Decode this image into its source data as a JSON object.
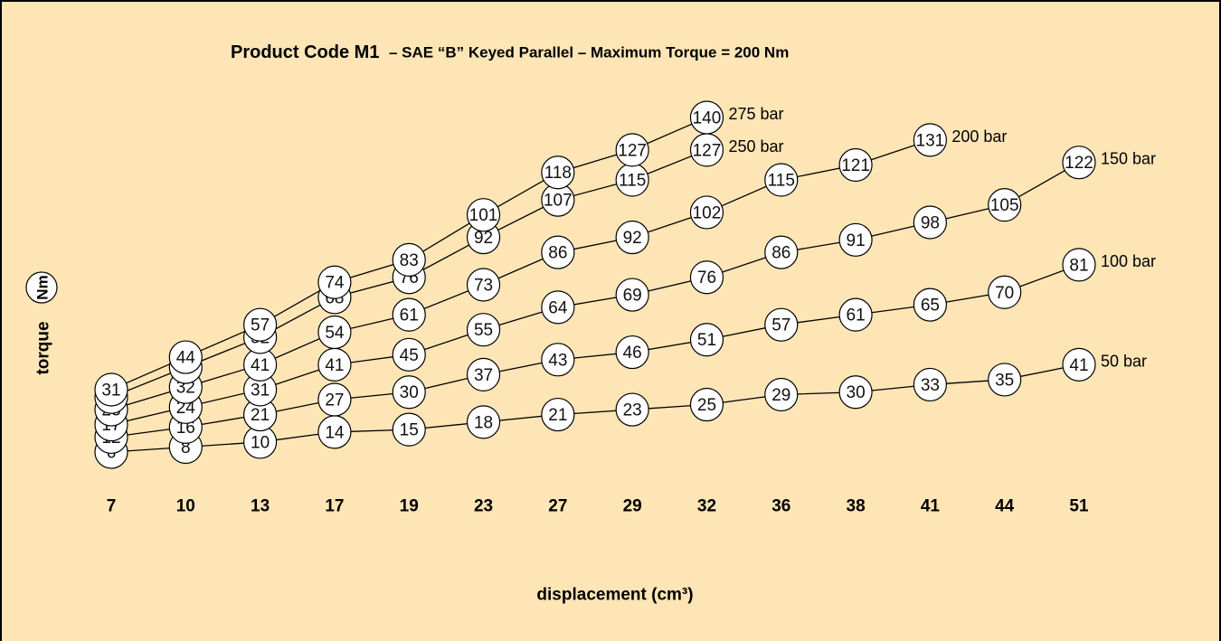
{
  "chart_data": {
    "type": "line",
    "title": "Product Code M1",
    "subtitle": "– SAE “B” Keyed Parallel – Maximum Torque = 200 Nm",
    "x_label": "displacement (cm³)",
    "y_label": "torque",
    "y_unit": "Nm",
    "background": "#fde5b6",
    "categories": [
      7,
      10,
      13,
      17,
      19,
      23,
      27,
      29,
      32,
      36,
      38,
      41,
      44,
      51
    ],
    "series": [
      {
        "name": "50 bar",
        "color": "#000000",
        "values": [
          6,
          8,
          10,
          14,
          15,
          18,
          21,
          23,
          25,
          29,
          30,
          33,
          35,
          41
        ]
      },
      {
        "name": "100 bar",
        "color": "#000000",
        "values": [
          12,
          16,
          21,
          27,
          30,
          37,
          43,
          46,
          51,
          57,
          61,
          65,
          70,
          81
        ]
      },
      {
        "name": "150 bar",
        "color": "#000000",
        "values": [
          17,
          24,
          31,
          41,
          45,
          55,
          64,
          69,
          76,
          86,
          91,
          98,
          105,
          122
        ]
      },
      {
        "name": "200 bar",
        "color": "#000000",
        "values": [
          23,
          32,
          41,
          54,
          61,
          73,
          86,
          92,
          102,
          115,
          121,
          131,
          null,
          null
        ]
      },
      {
        "name": "250 bar",
        "color": "#000000",
        "values": [
          28,
          40,
          52,
          68,
          76,
          92,
          107,
          115,
          127,
          null,
          null,
          null,
          null,
          null
        ]
      },
      {
        "name": "275 bar",
        "color": "#000000",
        "values": [
          31,
          44,
          57,
          74,
          83,
          101,
          118,
          127,
          140,
          null,
          null,
          null,
          null,
          null
        ]
      }
    ]
  }
}
